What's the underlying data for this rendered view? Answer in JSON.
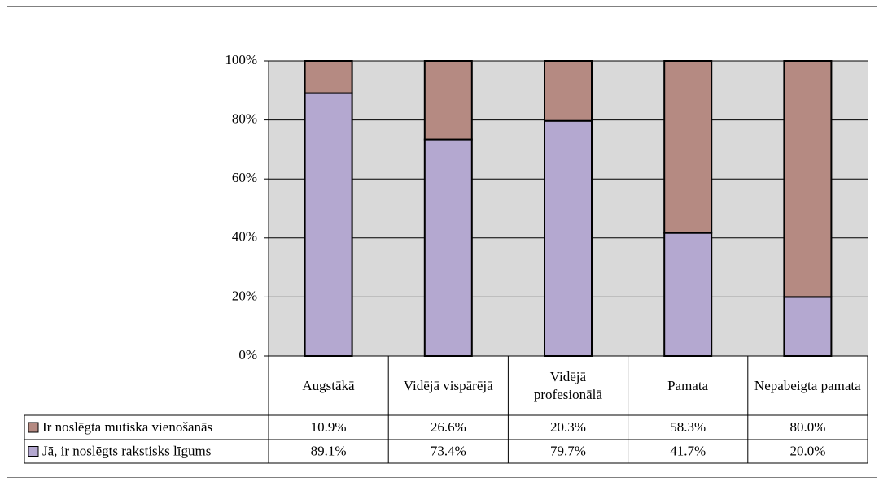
{
  "chart_data": {
    "type": "stacked_bar",
    "categories": [
      "Augstākā",
      "Vidējā vispārējā",
      "Vidējā profesionālā",
      "Pamata",
      "Nepabeigta pamata"
    ],
    "series": [
      {
        "name": "Jā, ir noslēgts rakstisks līgums",
        "color": "#b4a8d0",
        "values": [
          89.1,
          73.4,
          79.7,
          41.7,
          20.0
        ],
        "value_labels": [
          "89.1%",
          "73.4%",
          "79.7%",
          "41.7%",
          "20.0%"
        ]
      },
      {
        "name": "Ir noslēgta mutiska vienošanās",
        "color": "#b58a82",
        "values": [
          10.9,
          26.6,
          20.3,
          58.3,
          80.0
        ],
        "value_labels": [
          "10.9%",
          "26.6%",
          "20.3%",
          "58.3%",
          "80.0%"
        ]
      }
    ],
    "ylim": [
      0,
      100
    ],
    "yticks": [
      {
        "value": 0,
        "label": "0%"
      },
      {
        "value": 20,
        "label": "20%"
      },
      {
        "value": 40,
        "label": "40%"
      },
      {
        "value": 60,
        "label": "60%"
      },
      {
        "value": 80,
        "label": "80%"
      },
      {
        "value": 100,
        "label": "100%"
      }
    ],
    "grid": true
  }
}
